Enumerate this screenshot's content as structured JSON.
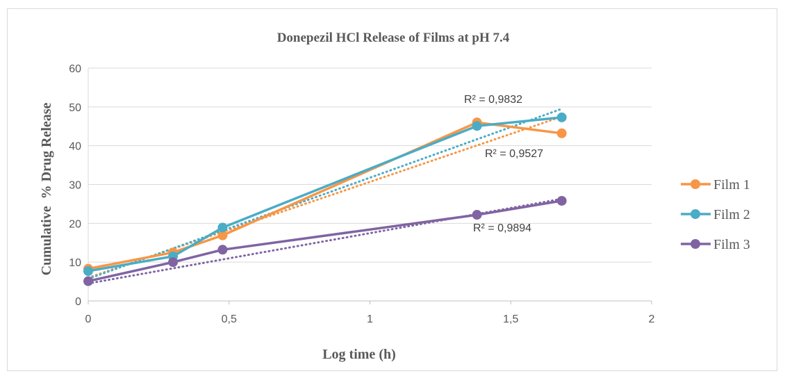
{
  "chart_data": {
    "type": "line",
    "title": "Donepezil HCl Release of Films at pH 7.4",
    "xlabel": "Log time (h)",
    "ylabel": "Cumulative  % Drug Release",
    "xlim": [
      0,
      2
    ],
    "ylim": [
      0,
      60
    ],
    "x_ticks": [
      "0",
      "0,5",
      "1",
      "1,5",
      "2"
    ],
    "y_ticks": [
      "0",
      "10",
      "20",
      "30",
      "40",
      "50",
      "60"
    ],
    "x_tick_values": [
      0,
      0.5,
      1,
      1.5,
      2
    ],
    "y_tick_values": [
      0,
      10,
      20,
      30,
      40,
      50,
      60
    ],
    "grid": "horizontal",
    "legend_position": "right",
    "series": [
      {
        "name": "Film 1",
        "color": "#F79646",
        "x": [
          0,
          0.301,
          0.477,
          1.38,
          1.681
        ],
        "y": [
          8.3,
          12.5,
          16.9,
          46.0,
          43.2
        ],
        "trendline": {
          "type": "linear",
          "start": [
            0,
            6.0
          ],
          "end": [
            1.681,
            47.5
          ],
          "r2_label": "R² = 0,9527"
        }
      },
      {
        "name": "Film 2",
        "color": "#4BACC6",
        "x": [
          0,
          0.301,
          0.477,
          1.38,
          1.681
        ],
        "y": [
          7.7,
          11.5,
          18.9,
          45.1,
          47.3
        ],
        "trendline": {
          "type": "linear",
          "start": [
            0,
            5.7
          ],
          "end": [
            1.681,
            49.5
          ],
          "r2_label": "R² = 0,9832"
        }
      },
      {
        "name": "Film 3",
        "color": "#8064A2",
        "x": [
          0,
          0.301,
          0.477,
          1.38,
          1.681
        ],
        "y": [
          5.1,
          10.0,
          13.2,
          22.2,
          25.8
        ],
        "trendline": {
          "type": "linear",
          "start": [
            0,
            4.5
          ],
          "end": [
            1.681,
            26.3
          ],
          "r2_label": "R² = 0,9894"
        }
      }
    ]
  }
}
